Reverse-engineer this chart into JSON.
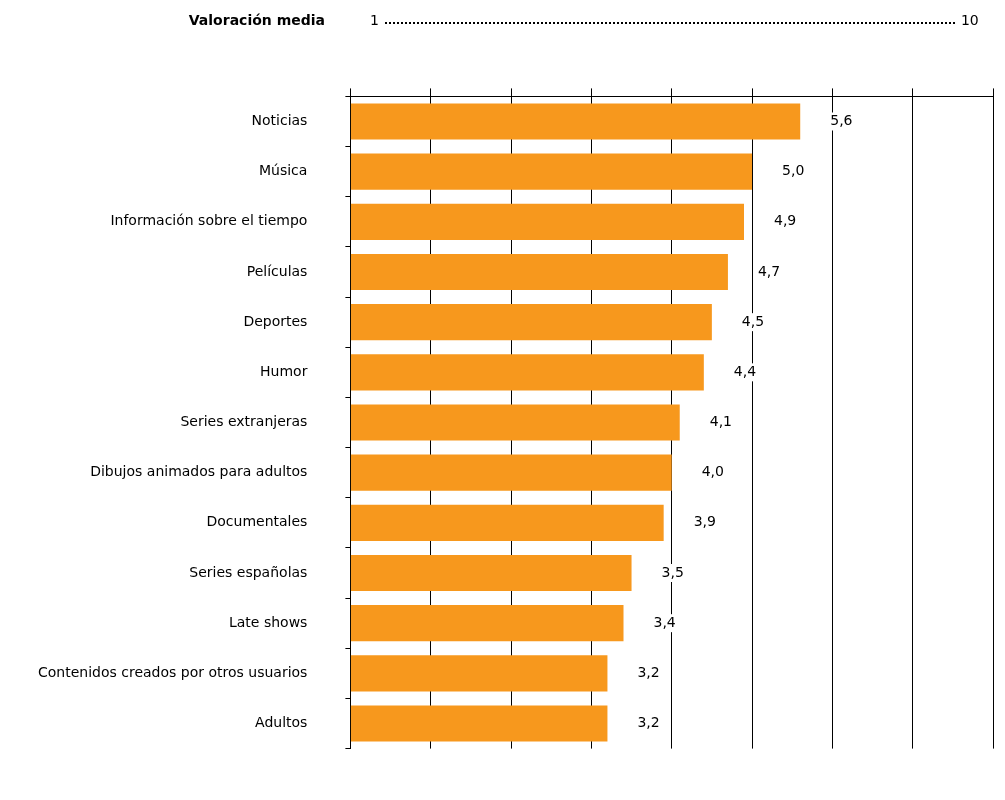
{
  "chart_data": {
    "type": "bar",
    "orientation": "horizontal",
    "categories": [
      "Noticias",
      "Música",
      "Información sobre el tiempo",
      "Películas",
      "Deportes",
      "Humor",
      "Series extranjeras",
      "Dibujos animados para adultos",
      "Documentales",
      "Series españolas",
      "Late shows",
      "Contenidos creados por otros usuarios",
      "Adultos"
    ],
    "values": [
      5.6,
      5.0,
      4.9,
      4.7,
      4.5,
      4.4,
      4.1,
      4.0,
      3.9,
      3.5,
      3.4,
      3.2,
      3.2
    ],
    "value_labels": [
      "5,6",
      "5,0",
      "4,9",
      "4,7",
      "4,5",
      "4,4",
      "4,1",
      "4,0",
      "3,9",
      "3,5",
      "3,4",
      "3,2",
      "3,2"
    ],
    "color": "#f7981d",
    "xlim": [
      0,
      8
    ],
    "xticks": [
      {
        "value": 0,
        "label": null
      },
      {
        "value": 1,
        "label": null
      },
      {
        "value": 2,
        "label": null
      },
      {
        "value": 3,
        "label": null
      },
      {
        "value": 4,
        "label": null
      },
      {
        "value": 5,
        "label": null
      },
      {
        "value": 6,
        "label": null
      },
      {
        "value": 7,
        "label": null
      },
      {
        "value": 8,
        "label": null
      }
    ],
    "tick_labels": "y",
    "grid": "x",
    "legend": false,
    "annotations": [
      "Valoración media",
      "1",
      "10"
    ]
  }
}
